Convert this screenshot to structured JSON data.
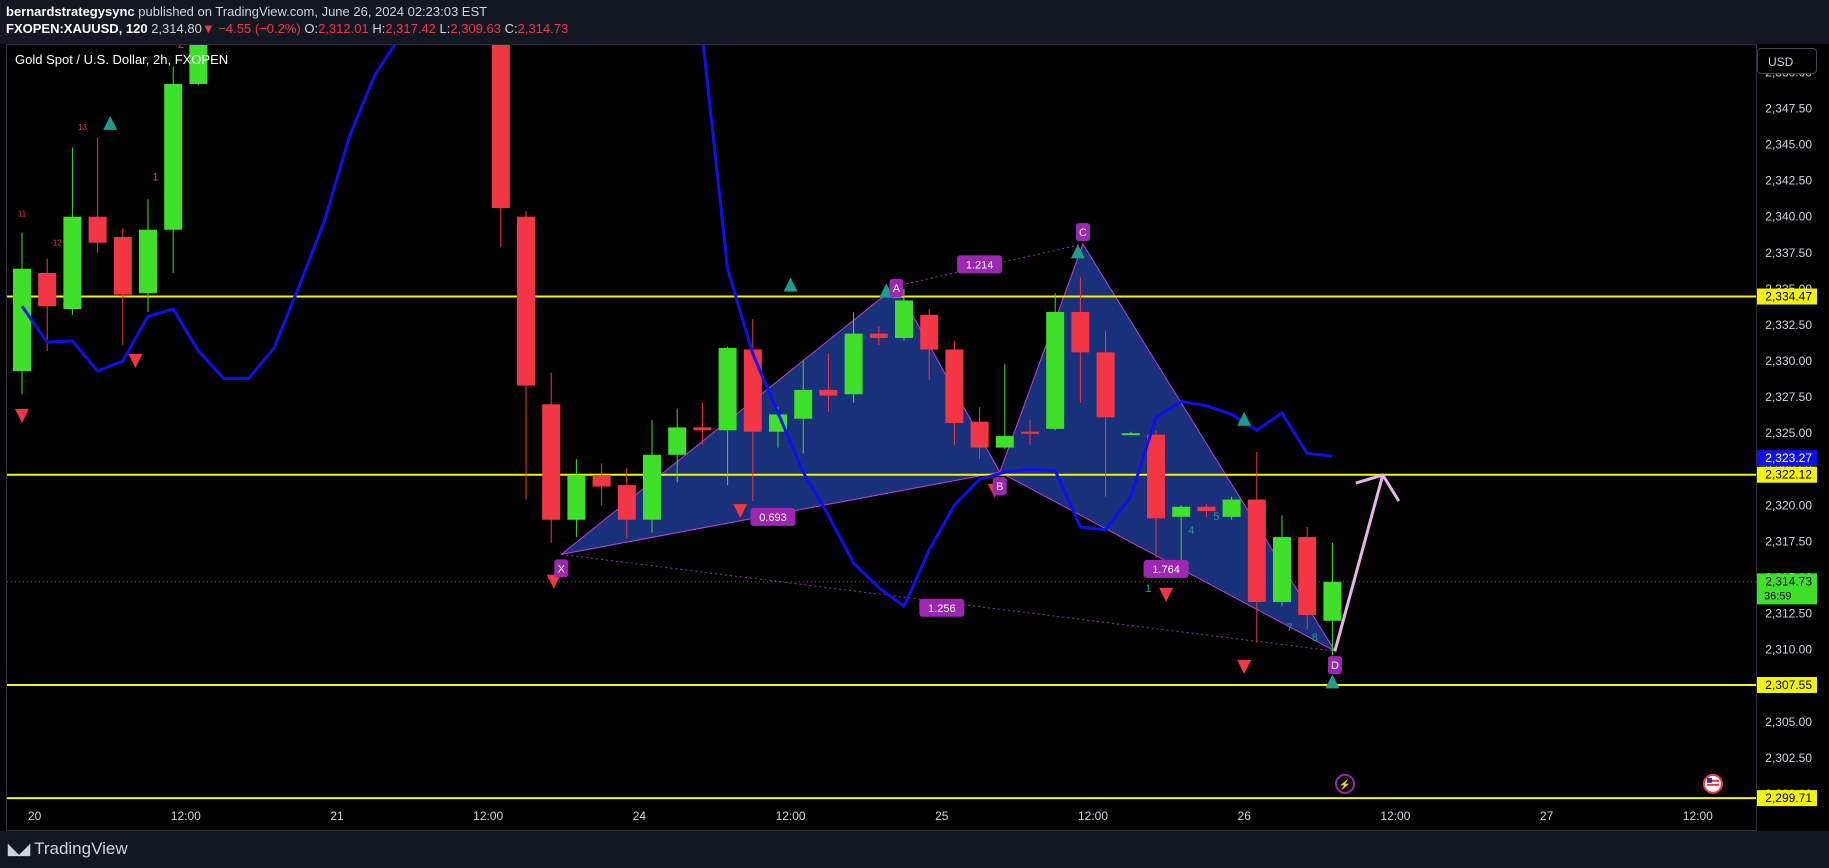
{
  "header": {
    "author": "bernardstrategysync",
    "published_text": "published on TradingView.com, June 26, 2024 02:23:03 EST",
    "symbol": "FXOPEN:XAUUSD, 120",
    "price": "2,314.80",
    "change": "−4.55 (−0.2%)",
    "open_label": "O:",
    "open": "2,312.01",
    "high_label": "H:",
    "high": "2,317.42",
    "low_label": "L:",
    "low": "2,309.63",
    "close_label": "C:",
    "close": "2,314.73"
  },
  "chart_title": "Gold Spot / U.S. Dollar, 2h, FXOPEN",
  "currency_button": "USD",
  "brand": "TradingView",
  "colors": {
    "bg": "#000000",
    "up": "#3ee029",
    "down": "#f23645",
    "sma": "#1010ee",
    "level": "#f5f500",
    "pattern_fill": "#1c3a8f",
    "pattern_edge": "#c040e0",
    "label_bg": "#9c27b0",
    "arrow": "#e8b5e8",
    "teal": "#1e9c8c"
  },
  "chart_data": {
    "type": "candlestick",
    "title": "Gold Spot / U.S. Dollar, 2h, FXOPEN",
    "ylim": [
      2297.5,
      2351.9
    ],
    "yticks": [
      2350.0,
      2347.5,
      2345.0,
      2342.5,
      2340.0,
      2337.5,
      2335.0,
      2332.5,
      2330.0,
      2327.5,
      2325.0,
      2322.5,
      2320.0,
      2317.5,
      2315.0,
      2312.5,
      2310.0,
      2307.5,
      2305.0,
      2302.5,
      2300.0
    ],
    "xticks": [
      {
        "label": "20",
        "i": 0.5
      },
      {
        "label": "12:00",
        "i": 6.5
      },
      {
        "label": "21",
        "i": 12.5
      },
      {
        "label": "12:00",
        "i": 18.5
      },
      {
        "label": "24",
        "i": 24.5
      },
      {
        "label": "12:00",
        "i": 30.5
      },
      {
        "label": "25",
        "i": 36.5
      },
      {
        "label": "12:00",
        "i": 42.5
      },
      {
        "label": "26",
        "i": 48.5
      },
      {
        "label": "12:00",
        "i": 54.5
      },
      {
        "label": "27",
        "i": 60.5
      },
      {
        "label": "12:00",
        "i": 66.5
      }
    ],
    "candles": [
      {
        "i": 0,
        "o": 2329.3,
        "h": 2338.9,
        "l": 2327.7,
        "c": 2336.4
      },
      {
        "i": 1,
        "o": 2336.1,
        "h": 2337.1,
        "l": 2330.7,
        "c": 2333.8
      },
      {
        "i": 2,
        "o": 2333.6,
        "h": 2344.8,
        "l": 2333.2,
        "c": 2340.0
      },
      {
        "i": 3,
        "o": 2340.0,
        "h": 2345.5,
        "l": 2337.5,
        "c": 2338.2
      },
      {
        "i": 4,
        "o": 2338.6,
        "h": 2339.2,
        "l": 2331.1,
        "c": 2334.6
      },
      {
        "i": 5,
        "o": 2334.7,
        "h": 2341.2,
        "l": 2333.4,
        "c": 2339.1
      },
      {
        "i": 6,
        "o": 2339.1,
        "h": 2350.4,
        "l": 2336.1,
        "c": 2349.2
      },
      {
        "i": 7,
        "o": 2349.2,
        "h": 2352.5,
        "l": 2349.1,
        "c": 2352.5
      },
      {
        "i": 19,
        "o": 2352.5,
        "h": 2352.5,
        "l": 2337.9,
        "c": 2340.6
      },
      {
        "i": 20,
        "o": 2340.0,
        "h": 2340.4,
        "l": 2320.4,
        "c": 2328.3
      },
      {
        "i": 21,
        "o": 2327.0,
        "h": 2329.2,
        "l": 2317.4,
        "c": 2319.0
      },
      {
        "i": 22,
        "o": 2319.0,
        "h": 2323.2,
        "l": 2317.8,
        "c": 2322.1
      },
      {
        "i": 23,
        "o": 2322.1,
        "h": 2322.9,
        "l": 2320.0,
        "c": 2321.3
      },
      {
        "i": 24,
        "o": 2321.4,
        "h": 2322.6,
        "l": 2317.7,
        "c": 2319.0
      },
      {
        "i": 25,
        "o": 2319.0,
        "h": 2325.9,
        "l": 2318.1,
        "c": 2323.5
      },
      {
        "i": 26,
        "o": 2323.5,
        "h": 2326.7,
        "l": 2321.6,
        "c": 2325.4
      },
      {
        "i": 27,
        "o": 2325.4,
        "h": 2327.1,
        "l": 2324.2,
        "c": 2325.2
      },
      {
        "i": 28,
        "o": 2325.2,
        "h": 2331.0,
        "l": 2321.4,
        "c": 2330.9
      },
      {
        "i": 29,
        "o": 2330.8,
        "h": 2332.9,
        "l": 2320.3,
        "c": 2325.1
      },
      {
        "i": 30,
        "o": 2325.1,
        "h": 2326.8,
        "l": 2324.0,
        "c": 2326.3
      },
      {
        "i": 31,
        "o": 2326.0,
        "h": 2330.1,
        "l": 2323.6,
        "c": 2328.0
      },
      {
        "i": 32,
        "o": 2328.0,
        "h": 2330.5,
        "l": 2326.5,
        "c": 2327.6
      },
      {
        "i": 33,
        "o": 2327.7,
        "h": 2333.4,
        "l": 2327.1,
        "c": 2331.9
      },
      {
        "i": 34,
        "o": 2331.9,
        "h": 2332.4,
        "l": 2331.1,
        "c": 2331.6
      },
      {
        "i": 35,
        "o": 2331.6,
        "h": 2335.0,
        "l": 2331.4,
        "c": 2334.2
      },
      {
        "i": 36,
        "o": 2333.2,
        "h": 2333.6,
        "l": 2328.7,
        "c": 2330.8
      },
      {
        "i": 37,
        "o": 2330.8,
        "h": 2331.4,
        "l": 2324.2,
        "c": 2325.7
      },
      {
        "i": 38,
        "o": 2325.8,
        "h": 2326.8,
        "l": 2323.2,
        "c": 2324.0
      },
      {
        "i": 39,
        "o": 2324.0,
        "h": 2329.8,
        "l": 2323.9,
        "c": 2324.8
      },
      {
        "i": 40,
        "o": 2325.1,
        "h": 2325.9,
        "l": 2324.2,
        "c": 2325.0
      },
      {
        "i": 41,
        "o": 2325.3,
        "h": 2334.7,
        "l": 2325.2,
        "c": 2333.4
      },
      {
        "i": 42,
        "o": 2333.4,
        "h": 2335.8,
        "l": 2327.1,
        "c": 2330.6
      },
      {
        "i": 43,
        "o": 2330.6,
        "h": 2332.1,
        "l": 2320.6,
        "c": 2326.1
      },
      {
        "i": 44,
        "o": 2325.0,
        "h": 2325.1,
        "l": 2324.9,
        "c": 2325.0
      },
      {
        "i": 45,
        "o": 2324.9,
        "h": 2325.2,
        "l": 2316.4,
        "c": 2319.1
      },
      {
        "i": 46,
        "o": 2319.2,
        "h": 2320.0,
        "l": 2315.3,
        "c": 2319.9
      },
      {
        "i": 47,
        "o": 2319.9,
        "h": 2320.1,
        "l": 2319.2,
        "c": 2319.6
      },
      {
        "i": 48,
        "o": 2319.2,
        "h": 2320.6,
        "l": 2319.0,
        "c": 2320.4
      },
      {
        "i": 49,
        "o": 2320.4,
        "h": 2323.7,
        "l": 2310.5,
        "c": 2313.3
      },
      {
        "i": 50,
        "o": 2313.3,
        "h": 2319.3,
        "l": 2313.0,
        "c": 2317.8
      },
      {
        "i": 51,
        "o": 2317.8,
        "h": 2318.5,
        "l": 2311.4,
        "c": 2312.4
      },
      {
        "i": 52,
        "o": 2312.0,
        "h": 2317.4,
        "l": 2309.6,
        "c": 2314.7
      }
    ],
    "sma_series": [
      [
        0,
        2333.8
      ],
      [
        1,
        2331.3
      ],
      [
        2,
        2331.4
      ],
      [
        3,
        2329.3
      ],
      [
        4,
        2330.0
      ],
      [
        5,
        2333.1
      ],
      [
        6,
        2333.6
      ],
      [
        7,
        2330.7
      ],
      [
        8,
        2328.8
      ],
      [
        9,
        2328.8
      ],
      [
        10,
        2330.9
      ],
      [
        11,
        2335.2
      ],
      [
        12,
        2339.7
      ],
      [
        13,
        2345.6
      ],
      [
        14,
        2349.8
      ],
      [
        15,
        2352.5
      ],
      [
        27,
        2352.5
      ],
      [
        28,
        2336.4
      ],
      [
        29,
        2330.5
      ],
      [
        30,
        2326.4
      ],
      [
        31,
        2322.3
      ],
      [
        32,
        2319.3
      ],
      [
        33,
        2316.0
      ],
      [
        34,
        2314.3
      ],
      [
        35,
        2313.0
      ],
      [
        36,
        2316.9
      ],
      [
        37,
        2320.0
      ],
      [
        38,
        2321.8
      ],
      [
        39,
        2322.3
      ],
      [
        40,
        2322.5
      ],
      [
        41,
        2322.4
      ],
      [
        42,
        2318.5
      ],
      [
        43,
        2318.3
      ],
      [
        44,
        2320.6
      ],
      [
        45,
        2326.1
      ],
      [
        46,
        2327.2
      ],
      [
        47,
        2326.9
      ],
      [
        48,
        2326.3
      ],
      [
        49,
        2325.2
      ],
      [
        50,
        2326.4
      ],
      [
        51,
        2323.6
      ],
      [
        52,
        2323.4
      ]
    ],
    "horizontal_levels": [
      {
        "price": 2334.47,
        "label": "2,334.47"
      },
      {
        "price": 2322.12,
        "label": "2,322.12"
      },
      {
        "price": 2307.55,
        "label": "2,307.55"
      },
      {
        "price": 2299.71,
        "label": "2,299.71"
      }
    ],
    "price_badges": [
      {
        "price": 2323.27,
        "label": "2,323.27",
        "kind": "sma"
      },
      {
        "price": 2314.73,
        "label": "2,314.73",
        "sub": "36:59",
        "kind": "last"
      }
    ],
    "harmonic_pattern": {
      "points": {
        "X": {
          "i": 21.4,
          "p": 2316.6
        },
        "A": {
          "i": 34.7,
          "p": 2335.2
        },
        "B": {
          "i": 38.8,
          "p": 2322.3
        },
        "C": {
          "i": 42.1,
          "p": 2338.1
        },
        "D": {
          "i": 52.1,
          "p": 2309.9
        }
      },
      "ratios": [
        {
          "label": "0.693",
          "i": 29.8,
          "p": 2319.2
        },
        {
          "label": "1.214",
          "i": 38.0,
          "p": 2336.7
        },
        {
          "label": "1.256",
          "i": 36.5,
          "p": 2312.9
        },
        {
          "label": "1.764",
          "i": 45.4,
          "p": 2315.6
        }
      ],
      "projection": {
        "from": {
          "i": 52.1,
          "p": 2309.9
        },
        "to": {
          "i": 54.0,
          "p": 2322.1
        }
      }
    },
    "markers": {
      "up_teal": [
        [
          3.5,
          2346.5
        ],
        [
          30.5,
          2335.3
        ],
        [
          34.3,
          2334.9
        ],
        [
          41.9,
          2337.6
        ],
        [
          48.5,
          2326.0
        ],
        [
          52.0,
          2307.8
        ]
      ],
      "down_red": [
        [
          0.0,
          2326.2
        ],
        [
          4.5,
          2330.0
        ],
        [
          21.1,
          2314.7
        ],
        [
          28.5,
          2319.6
        ],
        [
          38.6,
          2321.0
        ],
        [
          45.4,
          2313.8
        ],
        [
          48.5,
          2308.8
        ]
      ],
      "red_counts": [
        {
          "t": "11",
          "i": 0.0,
          "p": 2340.0
        },
        {
          "t": "12",
          "i": 1.4,
          "p": 2338.0
        },
        {
          "t": "13",
          "i": 2.4,
          "p": 2346.0
        },
        {
          "t": "1",
          "i": 5.3,
          "p": 2342.5
        },
        {
          "t": "2",
          "i": 6.3,
          "p": 2351.7
        }
      ],
      "teal_counts": [
        {
          "t": "1",
          "i": 44.7,
          "p": 2314.0
        },
        {
          "t": "4",
          "i": 46.4,
          "p": 2318.0
        },
        {
          "t": "5",
          "i": 47.4,
          "p": 2319.0
        },
        {
          "t": "7",
          "i": 50.3,
          "p": 2311.3
        },
        {
          "t": "8",
          "i": 51.3,
          "p": 2310.6
        }
      ]
    }
  },
  "time_axis_icons": [
    "lightning-icon",
    "us-flag-icon"
  ]
}
